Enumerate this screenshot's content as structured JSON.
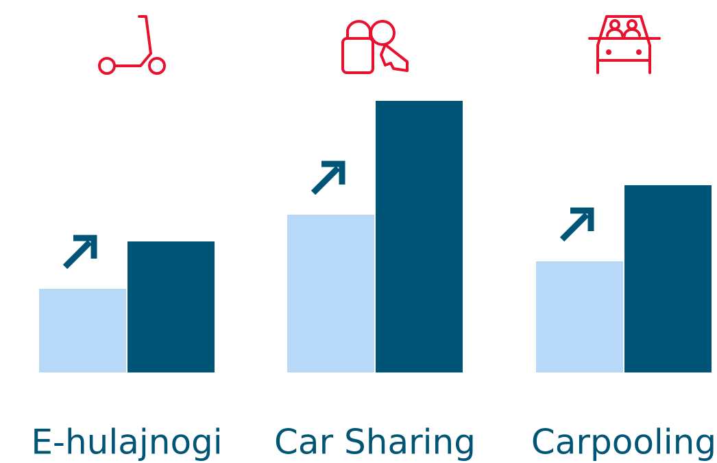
{
  "chart_data": {
    "type": "bar",
    "categories": [
      "E-hulajnogi",
      "Car Sharing",
      "Carpooling"
    ],
    "series": [
      {
        "color": "#b8d8f7",
        "values": [
          122,
          230,
          162
        ]
      },
      {
        "color": "#005577",
        "values": [
          191,
          396,
          273
        ]
      }
    ]
  }
}
